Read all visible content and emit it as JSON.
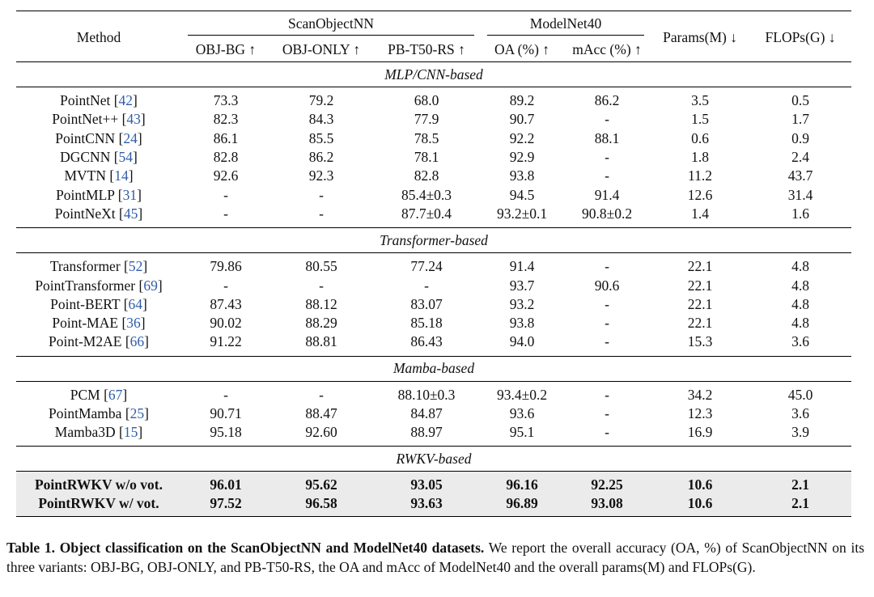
{
  "header": {
    "method": "Method",
    "scanobjectnn": "ScanObjectNN",
    "modelnet40": "ModelNet40",
    "params": "Params(M) ↓",
    "flops": "FLOPs(G) ↓",
    "cols": [
      "OBJ-BG ↑",
      "OBJ-ONLY ↑",
      "PB-T50-RS ↑",
      "OA (%) ↑",
      "mAcc (%) ↑"
    ]
  },
  "groups": [
    {
      "title": "MLP/CNN-based",
      "rows": [
        {
          "name": "PointNet",
          "cite": "42",
          "v": [
            "73.3",
            "79.2",
            "68.0",
            "89.2",
            "86.2",
            "3.5",
            "0.5"
          ]
        },
        {
          "name": "PointNet++",
          "cite": "43",
          "v": [
            "82.3",
            "84.3",
            "77.9",
            "90.7",
            "-",
            "1.5",
            "1.7"
          ]
        },
        {
          "name": "PointCNN",
          "cite": "24",
          "v": [
            "86.1",
            "85.5",
            "78.5",
            "92.2",
            "88.1",
            "0.6",
            "0.9"
          ]
        },
        {
          "name": "DGCNN",
          "cite": "54",
          "v": [
            "82.8",
            "86.2",
            "78.1",
            "92.9",
            "-",
            "1.8",
            "2.4"
          ]
        },
        {
          "name": "MVTN",
          "cite": "14",
          "v": [
            "92.6",
            "92.3",
            "82.8",
            "93.8",
            "-",
            "11.2",
            "43.7"
          ]
        },
        {
          "name": "PointMLP",
          "cite": "31",
          "v": [
            "-",
            "-",
            "85.4±0.3",
            "94.5",
            "91.4",
            "12.6",
            "31.4"
          ]
        },
        {
          "name": "PointNeXt",
          "cite": "45",
          "v": [
            "-",
            "-",
            "87.7±0.4",
            "93.2±0.1",
            "90.8±0.2",
            "1.4",
            "1.6"
          ]
        }
      ]
    },
    {
      "title": "Transformer-based",
      "rows": [
        {
          "name": "Transformer",
          "cite": "52",
          "v": [
            "79.86",
            "80.55",
            "77.24",
            "91.4",
            "-",
            "22.1",
            "4.8"
          ]
        },
        {
          "name": "PointTransformer",
          "cite": "69",
          "v": [
            "-",
            "-",
            "-",
            "93.7",
            "90.6",
            "22.1",
            "4.8"
          ]
        },
        {
          "name": "Point-BERT",
          "cite": "64",
          "v": [
            "87.43",
            "88.12",
            "83.07",
            "93.2",
            "-",
            "22.1",
            "4.8"
          ]
        },
        {
          "name": "Point-MAE",
          "cite": "36",
          "v": [
            "90.02",
            "88.29",
            "85.18",
            "93.8",
            "-",
            "22.1",
            "4.8"
          ]
        },
        {
          "name": "Point-M2AE",
          "cite": "66",
          "v": [
            "91.22",
            "88.81",
            "86.43",
            "94.0",
            "-",
            "15.3",
            "3.6"
          ]
        }
      ]
    },
    {
      "title": "Mamba-based",
      "rows": [
        {
          "name": "PCM",
          "cite": "67",
          "v": [
            "-",
            "-",
            "88.10±0.3",
            "93.4±0.2",
            "-",
            "34.2",
            "45.0"
          ]
        },
        {
          "name": "PointMamba",
          "cite": "25",
          "v": [
            "90.71",
            "88.47",
            "84.87",
            "93.6",
            "-",
            "12.3",
            "3.6"
          ]
        },
        {
          "name": "Mamba3D",
          "cite": "15",
          "v": [
            "95.18",
            "92.60",
            "88.97",
            "95.1",
            "-",
            "16.9",
            "3.9"
          ]
        }
      ]
    },
    {
      "title": "RWKV-based",
      "ours": true,
      "rows": [
        {
          "name": "PointRWKV w/o vot.",
          "cite": "",
          "v": [
            "96.01",
            "95.62",
            "93.05",
            "96.16",
            "92.25",
            "10.6",
            "2.1"
          ]
        },
        {
          "name": "PointRWKV w/ vot.",
          "cite": "",
          "v": [
            "97.52",
            "96.58",
            "93.63",
            "96.89",
            "93.08",
            "10.6",
            "2.1"
          ]
        }
      ]
    }
  ],
  "caption": {
    "label": "Table 1.",
    "bold": "Object classification on the ScanObjectNN and ModelNet40 datasets.",
    "text": "We report the overall accuracy (OA, %) of ScanObjectNN on its three variants: OBJ-BG, OBJ-ONLY, and PB-T50-RS, the OA and mAcc of ModelNet40 and the overall params(M) and FLOPs(G)."
  }
}
